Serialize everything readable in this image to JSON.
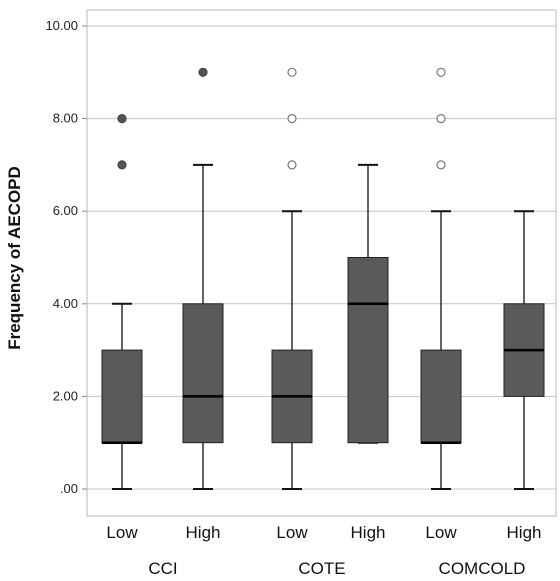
{
  "chart_data": {
    "type": "boxplot",
    "ylabel": "Frequency of AECOPD",
    "ylim": [
      0,
      10
    ],
    "y_ticks": [
      ".00",
      "2.00",
      "4.00",
      "6.00",
      "8.00",
      "10.00"
    ],
    "grid": "horizontal",
    "groups": [
      "CCI",
      "COTE",
      "COMCOLD"
    ],
    "box_color": "#5a5a5a",
    "boxes": [
      {
        "group": "CCI",
        "label": "Low",
        "min": 0,
        "q1": 1,
        "median": 1,
        "q3": 3,
        "max": 4,
        "outliers": [
          {
            "value": 7,
            "filled": true
          },
          {
            "value": 8,
            "filled": true
          }
        ]
      },
      {
        "group": "CCI",
        "label": "High",
        "min": 0,
        "q1": 1,
        "median": 2,
        "q3": 4,
        "max": 7,
        "outliers": [
          {
            "value": 9,
            "filled": true
          }
        ]
      },
      {
        "group": "COTE",
        "label": "Low",
        "min": 0,
        "q1": 1,
        "median": 2,
        "q3": 3,
        "max": 6,
        "outliers": [
          {
            "value": 7,
            "filled": false
          },
          {
            "value": 8,
            "filled": false
          },
          {
            "value": 9,
            "filled": false
          }
        ]
      },
      {
        "group": "COTE",
        "label": "High",
        "min": 1,
        "q1": 1,
        "median": 4,
        "q3": 5,
        "max": 7,
        "outliers": []
      },
      {
        "group": "COMCOLD",
        "label": "Low",
        "min": 0,
        "q1": 1,
        "median": 1,
        "q3": 3,
        "max": 6,
        "outliers": [
          {
            "value": 7,
            "filled": false
          },
          {
            "value": 8,
            "filled": false
          },
          {
            "value": 9,
            "filled": false
          }
        ]
      },
      {
        "group": "COMCOLD",
        "label": "High",
        "min": 0,
        "q1": 2,
        "median": 3,
        "q3": 4,
        "max": 6,
        "outliers": []
      }
    ]
  }
}
